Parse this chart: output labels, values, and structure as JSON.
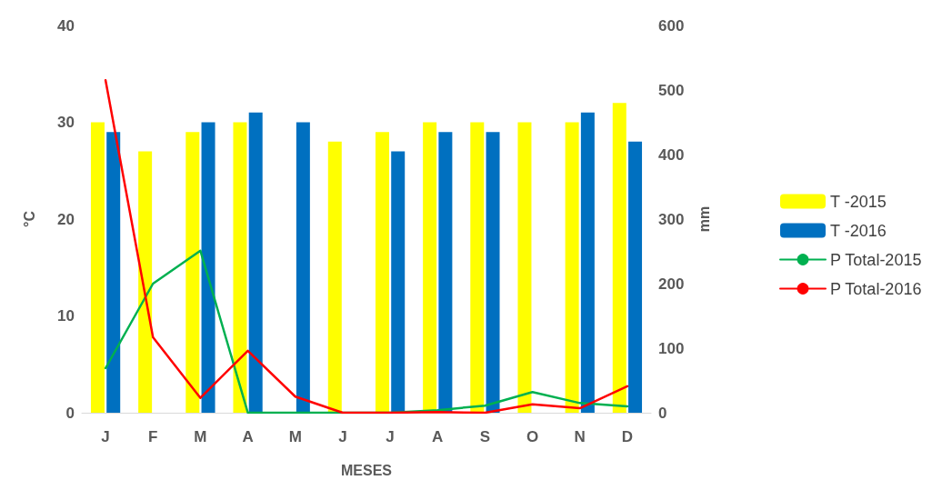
{
  "chart_data": {
    "type": "bar",
    "xlabel": "MESES",
    "ylabel": "°C",
    "y2label": "mm",
    "categories": [
      "J",
      "F",
      "M",
      "A",
      "M",
      "J",
      "J",
      "A",
      "S",
      "O",
      "N",
      "D"
    ],
    "ylim": [
      0,
      40
    ],
    "yticks": [
      0,
      10,
      20,
      30,
      40
    ],
    "y2lim": [
      0,
      600
    ],
    "y2ticks": [
      0,
      100,
      200,
      300,
      400,
      500,
      600
    ],
    "grid": false,
    "legend": "right",
    "marker": "none",
    "line_style": "solid",
    "series": [
      {
        "name": "T -2015",
        "color": "#ffff00",
        "values": [
          30,
          27,
          29,
          30,
          null,
          28,
          29,
          30,
          30,
          30,
          30,
          32
        ]
      },
      {
        "name": "T -2016",
        "color": "#0070c0",
        "values": [
          29,
          null,
          30,
          31,
          30,
          null,
          27,
          29,
          29,
          null,
          31,
          28
        ]
      },
      {
        "name": "P Total-2015",
        "type": "line",
        "axis": "y2",
        "color": "#00b050",
        "values": [
          69,
          200,
          251,
          0,
          0,
          0,
          0,
          4,
          11,
          32,
          15,
          10
        ]
      },
      {
        "name": "P Total-2016",
        "type": "line",
        "axis": "y2",
        "color": "#ff0000",
        "values": [
          515,
          117,
          23,
          96,
          25,
          0,
          0,
          1,
          0,
          13,
          7,
          41
        ]
      }
    ]
  }
}
